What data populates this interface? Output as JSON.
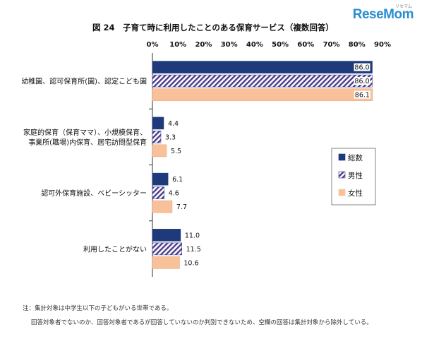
{
  "brand": {
    "logo_text": "ReseMom",
    "logo_small": "リセマム"
  },
  "chart_data": {
    "type": "bar",
    "orientation": "horizontal",
    "title": "図 24　子育て時に利用したことのある保育サービス（複数回答）",
    "categories": [
      [
        "幼稚園、認可保育所(園)、認定こども園"
      ],
      [
        "家庭的保育（保育ママ）、小規模保育、",
        "事業所(職場)内保育、居宅訪問型保育"
      ],
      [
        "認可外保育施設、ベビーシッター"
      ],
      [
        "利用したことがない"
      ]
    ],
    "series": [
      {
        "name": "総数",
        "values": [
          86.0,
          4.4,
          6.1,
          11.0
        ],
        "color": "#1f3a7a",
        "pattern": "solid"
      },
      {
        "name": "男性",
        "values": [
          86.0,
          3.3,
          4.6,
          11.5
        ],
        "color": "#4a3c8c",
        "pattern": "diagonal-stripes"
      },
      {
        "name": "女性",
        "values": [
          86.1,
          5.5,
          7.7,
          10.6
        ],
        "color": "#f9c199",
        "pattern": "solid"
      }
    ],
    "x_ticks": [
      "0%",
      "10%",
      "20%",
      "30%",
      "40%",
      "50%",
      "60%",
      "70%",
      "80%",
      "90%"
    ],
    "xlim": [
      0,
      90
    ],
    "x_axis_position": "top",
    "grid": false,
    "legend_position": "right"
  },
  "notes": [
    "注：集計対象は中学生以下の子どもがいる世帯である。",
    "回答対象者でないのか、回答対象者であるが回答していないのか判別できないため、空欄の回答は集計対象から除外している。"
  ]
}
